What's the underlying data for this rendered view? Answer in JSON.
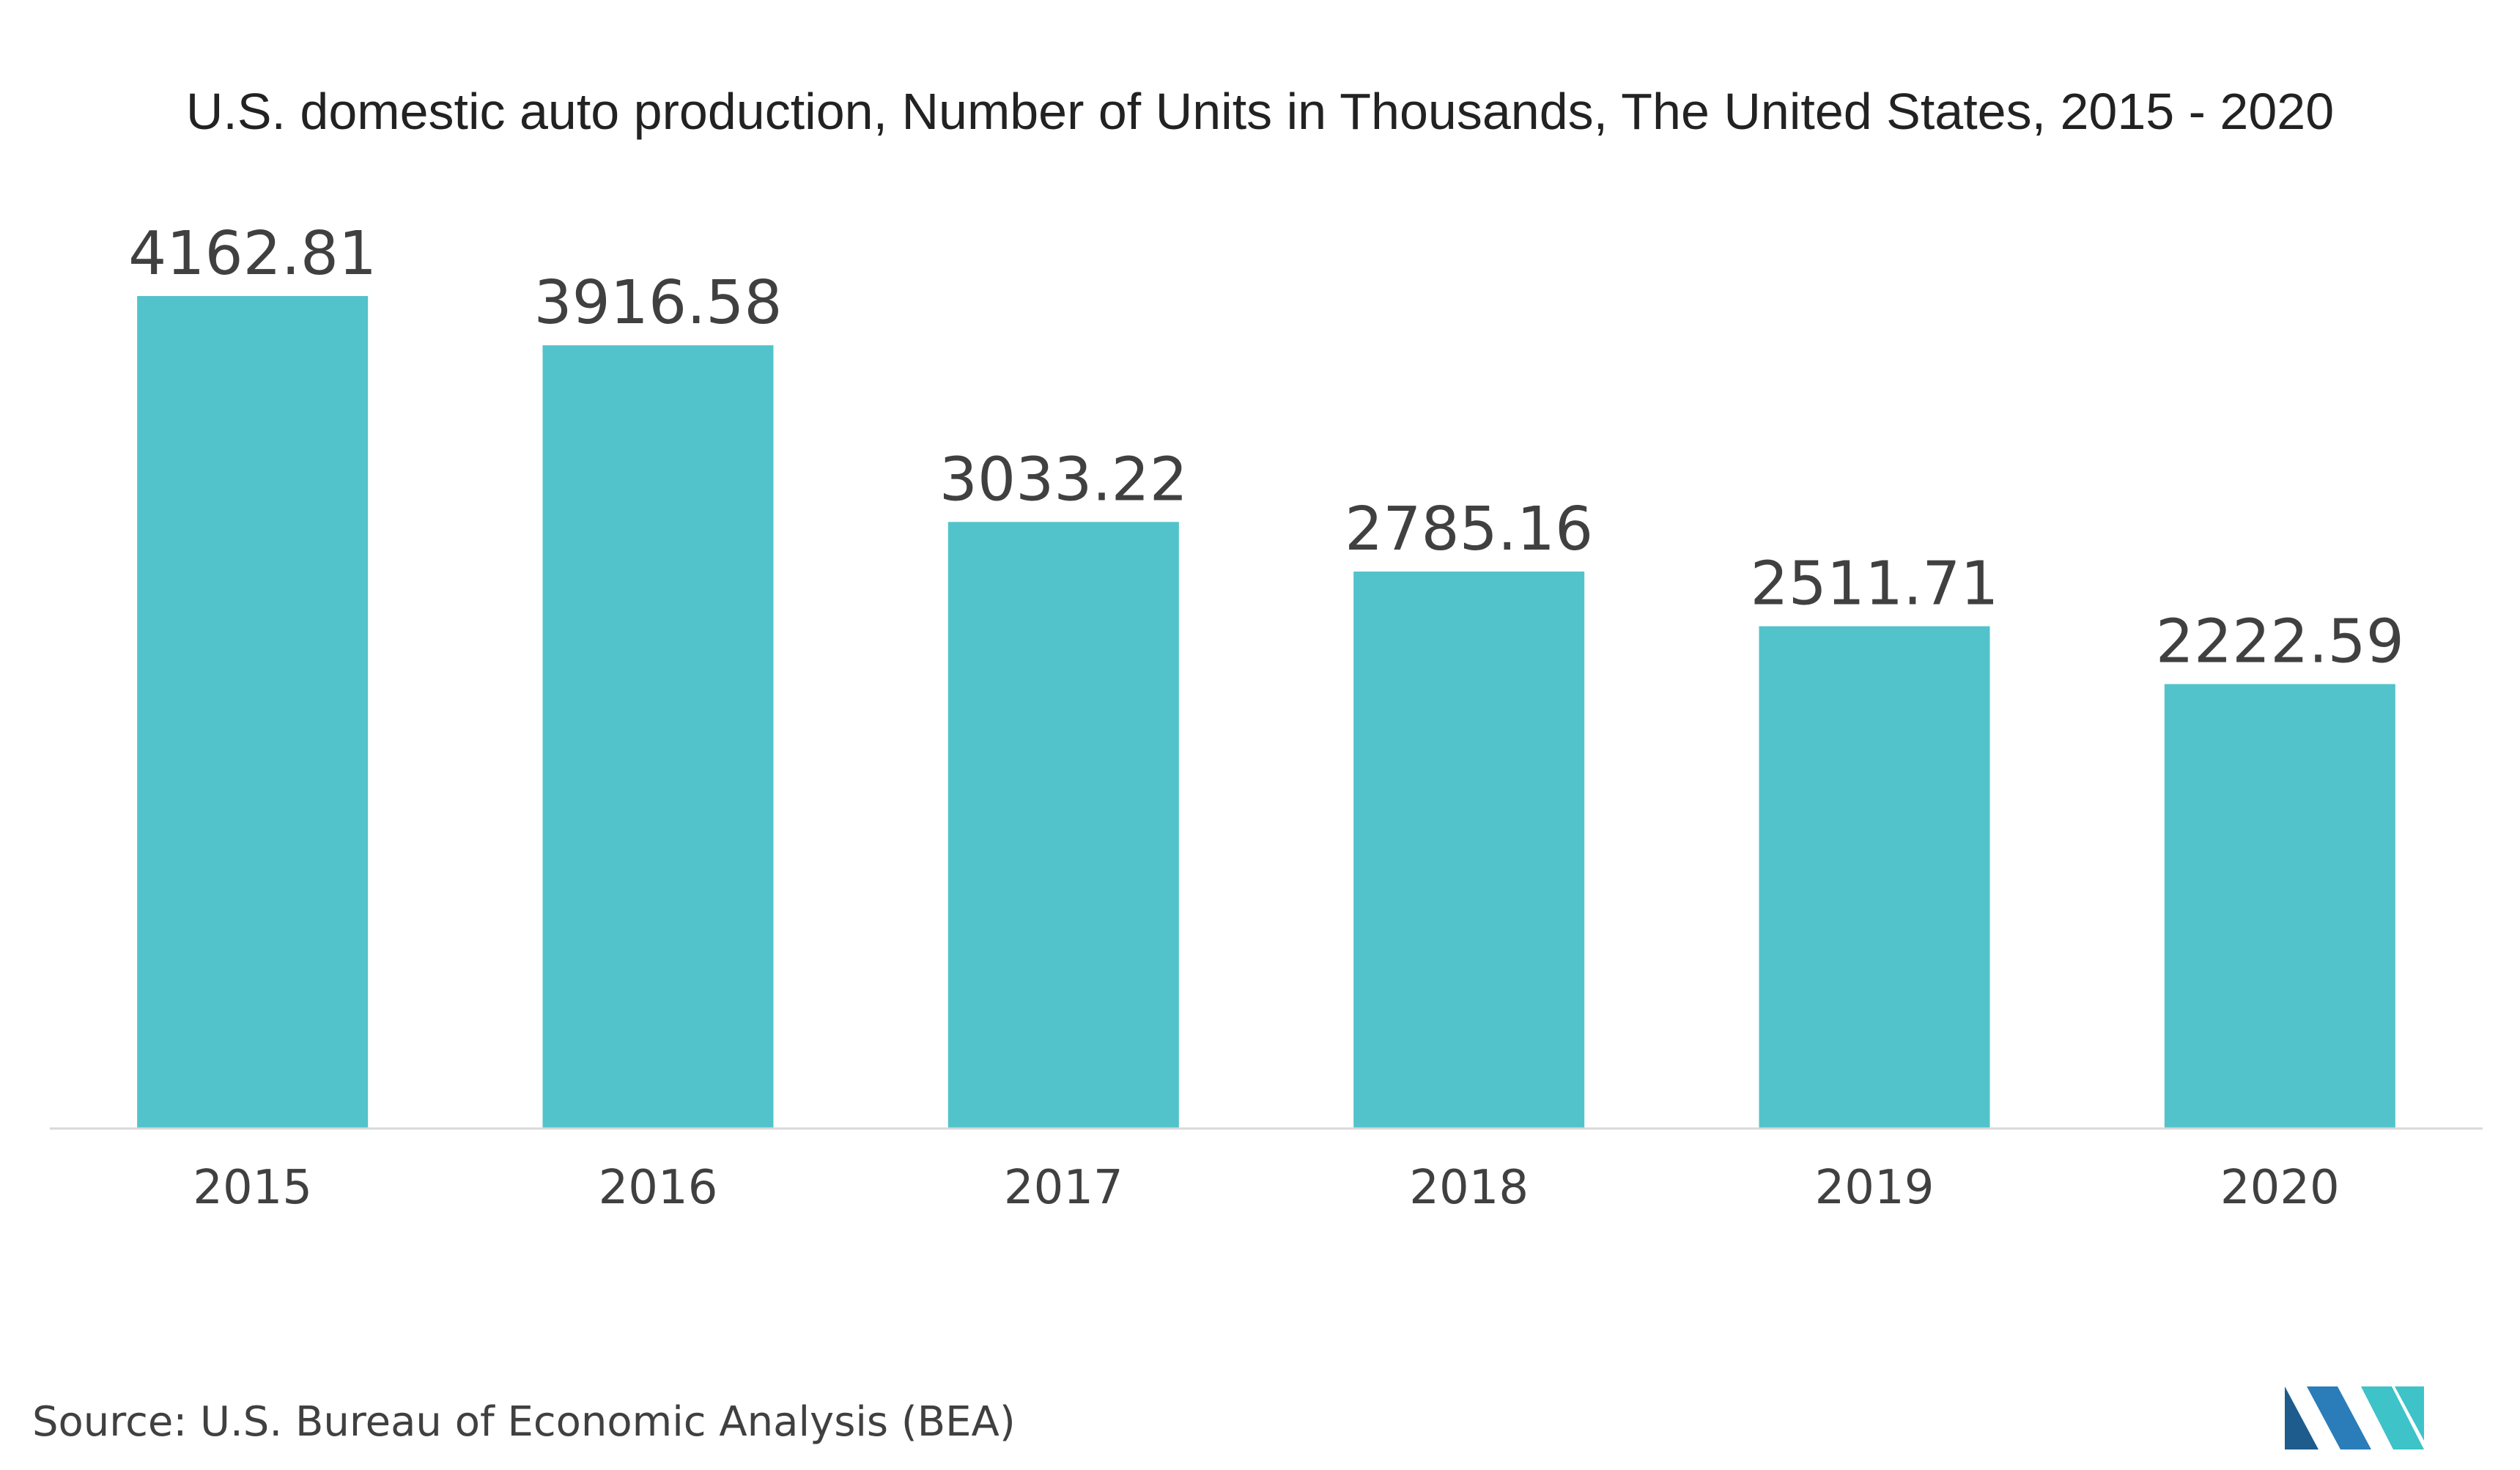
{
  "chart_data": {
    "type": "bar",
    "title": "U.S. domestic auto production, Number of Units in Thousands, The United States, 2015 - 2020",
    "categories": [
      "2015",
      "2016",
      "2017",
      "2018",
      "2019",
      "2020"
    ],
    "values": [
      4162.81,
      3916.58,
      3033.22,
      2785.16,
      2511.71,
      2222.59
    ],
    "value_labels": [
      "4162.81",
      "3916.58",
      "3033.22",
      "2785.16",
      "2511.71",
      "2222.59"
    ],
    "xlabel": "",
    "ylabel": "",
    "ylim": [
      0,
      4162.81
    ],
    "grid": false,
    "legend": "none",
    "bar_color": "#52C3CA",
    "axis_color": "#D9D9D9",
    "text_color": "#404040"
  },
  "source": "Source: U.S. Bureau of Economic Analysis (BEA)",
  "logo": {
    "icon": "mordor-intelligence-logo",
    "colors": [
      "#1D5C8C",
      "#2A7DB8",
      "#3DC3C8"
    ]
  }
}
